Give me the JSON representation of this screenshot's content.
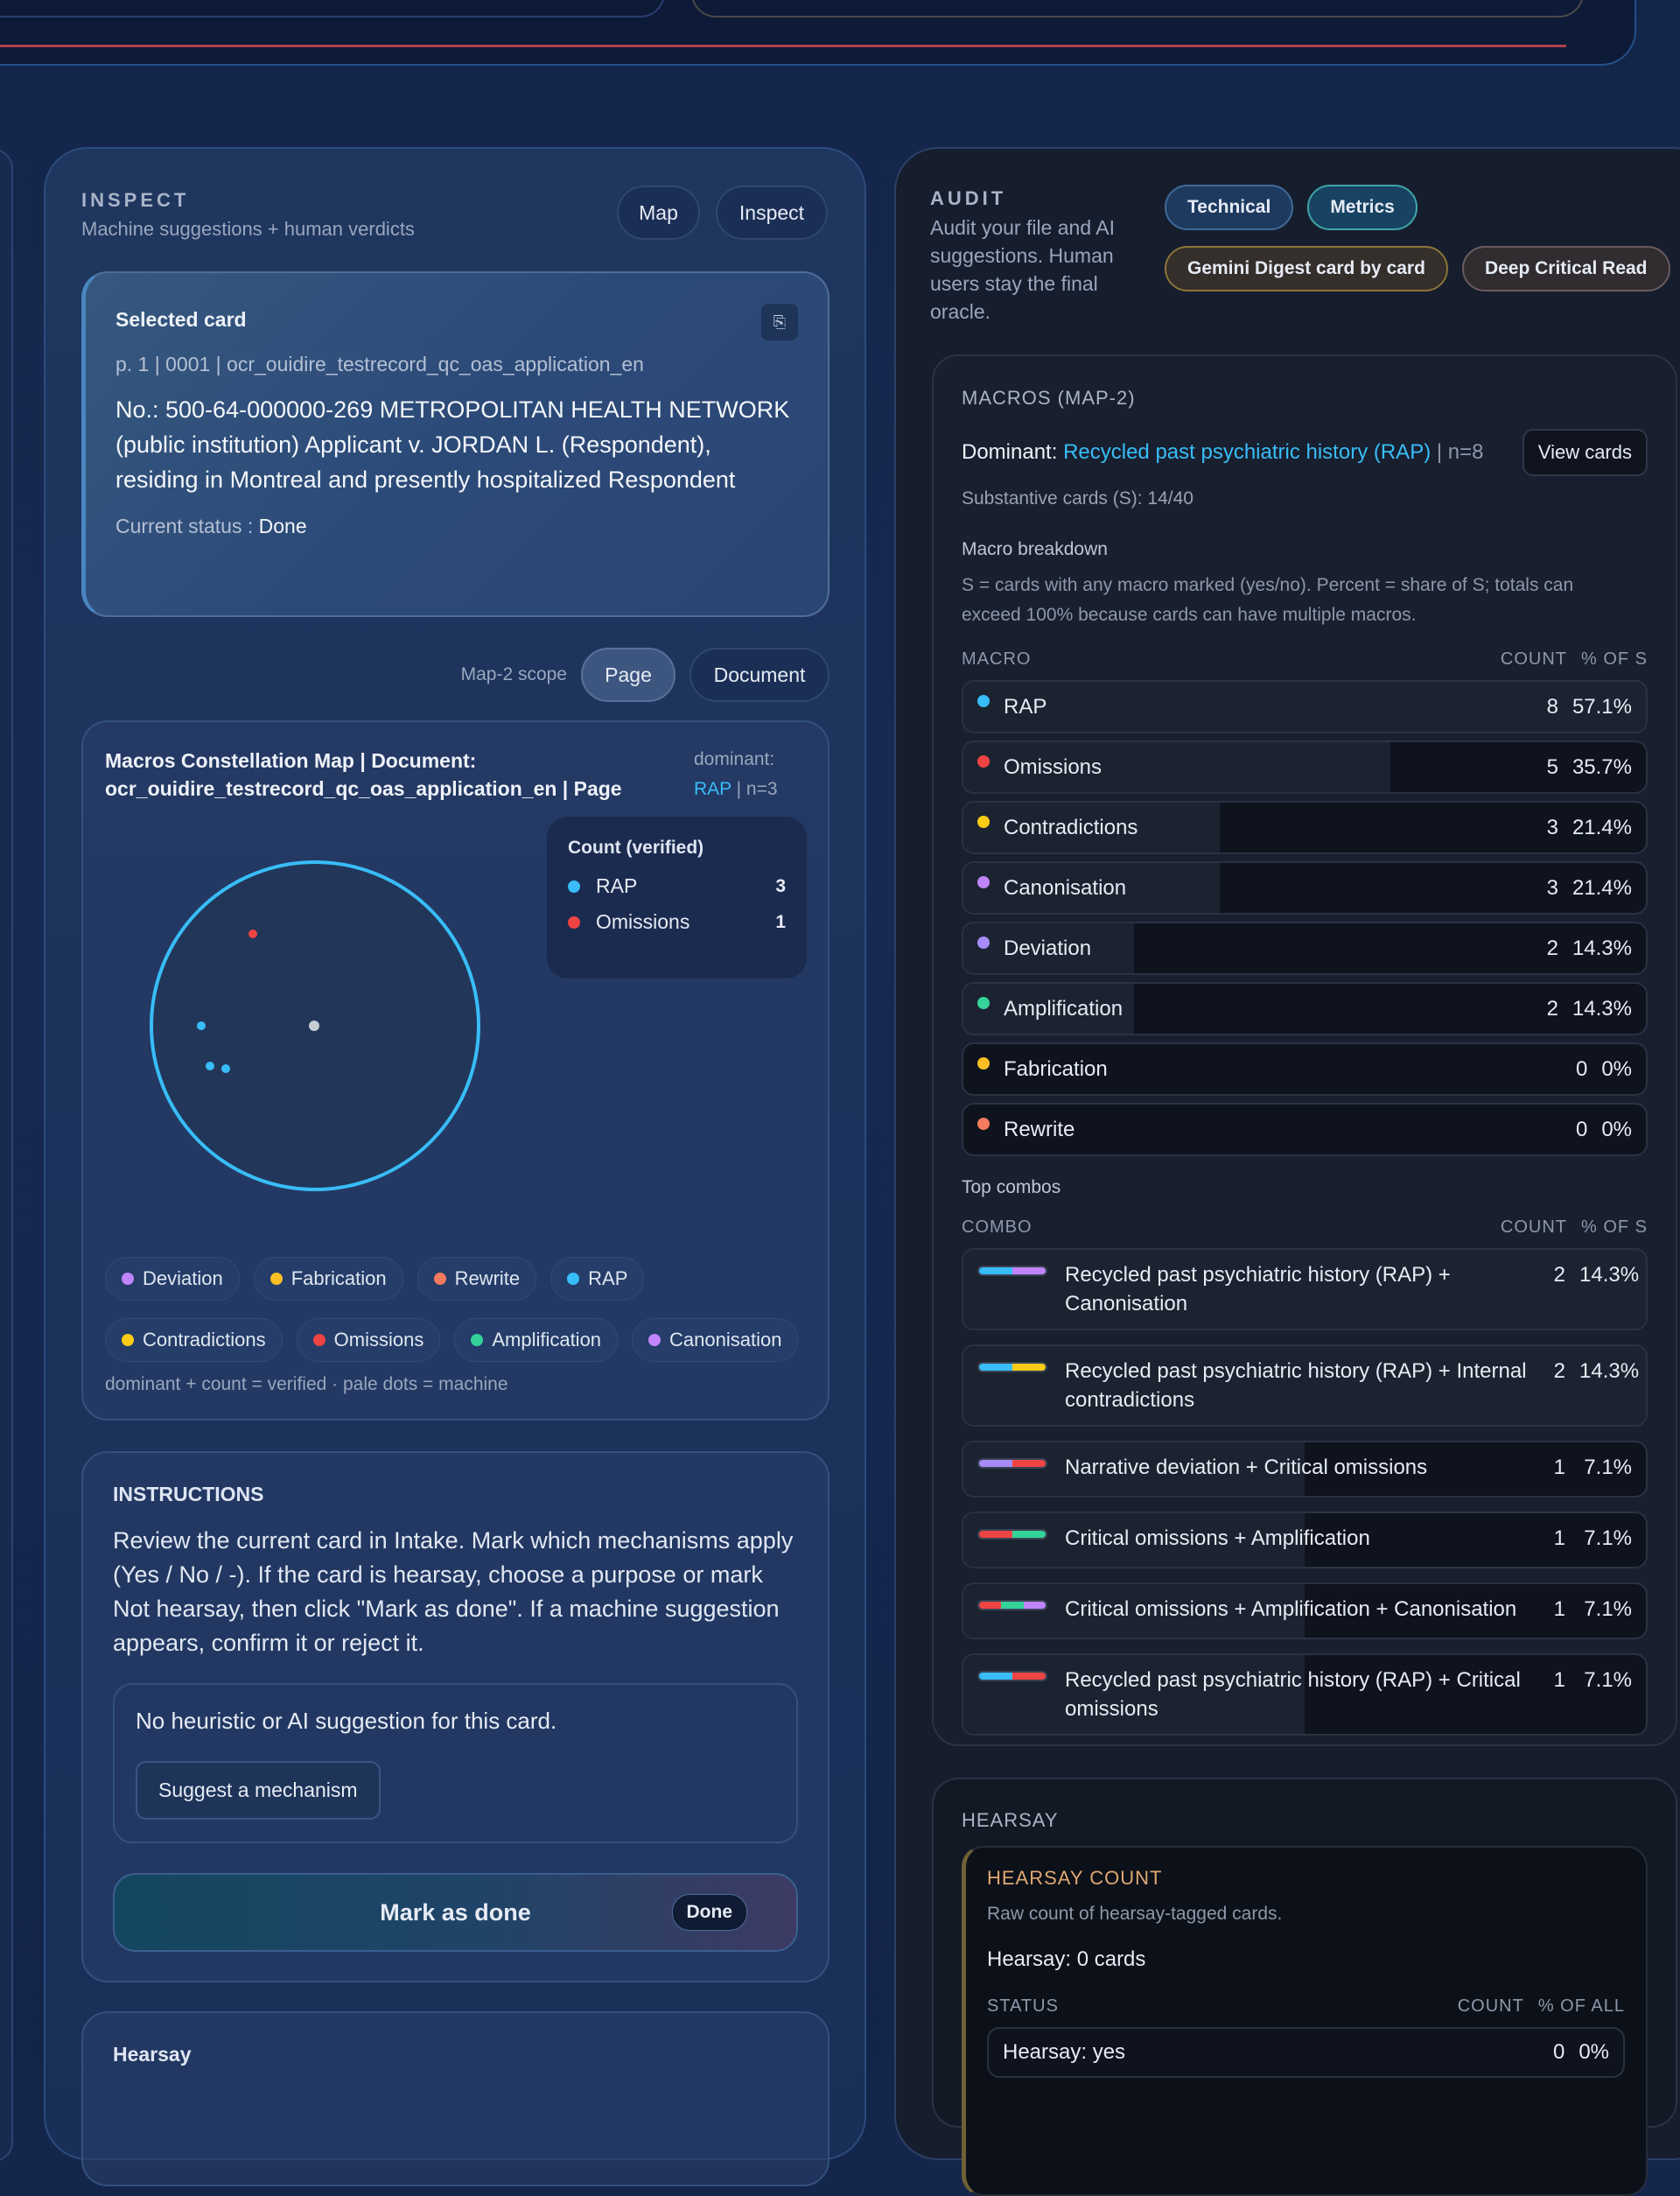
{
  "inspect": {
    "title": "INSPECT",
    "subtitle": "Machine suggestions + human verdicts",
    "tabs": [
      "Map",
      "Inspect"
    ],
    "selected_card": {
      "label": "Selected card",
      "meta": "p. 1 | 0001 | ocr_ouidire_testrecord_qc_oas_application_en",
      "text": "No.: 500-64-000000-269 METROPOLITAN HEALTH NETWORK (public institution) Applicant v. JORDAN L. (Respondent), residing in Montreal and presently hospitalized Respondent",
      "status_label": "Current status : ",
      "status": "Done"
    },
    "scope": {
      "label": "Map-2 scope",
      "options": [
        "Page",
        "Document"
      ],
      "selected": "Page"
    },
    "map": {
      "title": "Macros Constellation Map | Document: ocr_ouidire_testrecord_qc_oas_application_en | Page",
      "dominant_label": "dominant:",
      "dominant": "RAP",
      "dominant_n": " | n=3",
      "legend_title": "Count (verified)",
      "legend": [
        {
          "name": "RAP",
          "count": "3",
          "color": "#38bdf8"
        },
        {
          "name": "Omissions",
          "count": "1",
          "color": "#ef4444"
        }
      ],
      "chips": [
        {
          "name": "Deviation",
          "color": "#c084fc"
        },
        {
          "name": "Fabrication",
          "color": "#fbbf24"
        },
        {
          "name": "Rewrite",
          "color": "#f47b5e"
        },
        {
          "name": "RAP",
          "color": "#38bdf8"
        },
        {
          "name": "Contradictions",
          "color": "#facc15"
        },
        {
          "name": "Omissions",
          "color": "#ef4444"
        },
        {
          "name": "Amplification",
          "color": "#34d399"
        },
        {
          "name": "Canonisation",
          "color": "#c084fc"
        }
      ],
      "note": "dominant + count = verified · pale dots = machine"
    },
    "instructions": {
      "title": "INSTRUCTIONS",
      "text": "Review the current card in Intake. Mark which mechanisms apply (Yes / No / -). If the card is hearsay, choose a purpose or mark Not hearsay, then click \"Mark as done\". If a machine suggestion appears, confirm it or reject it.",
      "no_suggestion": "No heuristic or AI suggestion for this card.",
      "suggest_button": "Suggest a mechanism",
      "mark_done": "Mark as done",
      "done_badge": "Done"
    },
    "hearsay_title": "Hearsay"
  },
  "audit": {
    "title": "AUDIT",
    "subtitle": "Audit your file and AI suggestions. Human users stay the final oracle.",
    "tabs": [
      "Technical",
      "Metrics"
    ],
    "actions": [
      "Gemini Digest card by card",
      "Deep Critical Read"
    ],
    "macros": {
      "title": "MACROS (MAP-2)",
      "dominant_label": "Dominant: ",
      "dominant": "Recycled past psychiatric history (RAP)",
      "dominant_n": " | n=8",
      "view_cards": "View cards",
      "substantive": "Substantive cards (S): 14/40",
      "breakdown_title": "Macro breakdown",
      "breakdown_note": "S = cards with any macro marked (yes/no). Percent = share of S; totals can exceed 100% because cards can have multiple macros.",
      "headers": [
        "MACRO",
        "COUNT",
        "% OF S"
      ],
      "rows": [
        {
          "name": "RAP",
          "count": 8,
          "pct": "57.1%",
          "color": "#38bdf8"
        },
        {
          "name": "Omissions",
          "count": 5,
          "pct": "35.7%",
          "color": "#ef4444"
        },
        {
          "name": "Contradictions",
          "count": 3,
          "pct": "21.4%",
          "color": "#facc15"
        },
        {
          "name": "Canonisation",
          "count": 3,
          "pct": "21.4%",
          "color": "#c084fc"
        },
        {
          "name": "Deviation",
          "count": 2,
          "pct": "14.3%",
          "color": "#a78bfa"
        },
        {
          "name": "Amplification",
          "count": 2,
          "pct": "14.3%",
          "color": "#34d399"
        },
        {
          "name": "Fabrication",
          "count": 0,
          "pct": "0%",
          "color": "#fbbf24"
        },
        {
          "name": "Rewrite",
          "count": 0,
          "pct": "0%",
          "color": "#f47b5e"
        }
      ],
      "combos_title": "Top combos",
      "combo_headers": [
        "COMBO",
        "COUNT",
        "% OF S"
      ],
      "combos": [
        {
          "name": "Recycled past psychiatric history (RAP) + Canonisation",
          "count": 2,
          "pct": "14.3%",
          "colors": [
            "#38bdf8",
            "#c084fc"
          ]
        },
        {
          "name": "Recycled past psychiatric history (RAP) + Internal contradictions",
          "count": 2,
          "pct": "14.3%",
          "colors": [
            "#38bdf8",
            "#facc15"
          ]
        },
        {
          "name": "Narrative deviation + Critical omissions",
          "count": 1,
          "pct": "7.1%",
          "colors": [
            "#a78bfa",
            "#ef4444"
          ]
        },
        {
          "name": "Critical omissions + Amplification",
          "count": 1,
          "pct": "7.1%",
          "colors": [
            "#ef4444",
            "#34d399"
          ]
        },
        {
          "name": "Critical omissions + Amplification + Canonisation",
          "count": 1,
          "pct": "7.1%",
          "colors": [
            "#ef4444",
            "#34d399",
            "#c084fc"
          ]
        },
        {
          "name": "Recycled past psychiatric history (RAP) + Critical omissions",
          "count": 1,
          "pct": "7.1%",
          "colors": [
            "#38bdf8",
            "#ef4444"
          ]
        }
      ]
    },
    "hearsay": {
      "title": "HEARSAY",
      "count_title": "HEARSAY COUNT",
      "count_desc": "Raw count of hearsay-tagged cards.",
      "summary": "Hearsay: 0 cards",
      "headers": [
        "STATUS",
        "COUNT",
        "% OF ALL"
      ],
      "rows": [
        {
          "name": "Hearsay: yes",
          "count": 0,
          "pct": "0%"
        }
      ]
    }
  }
}
